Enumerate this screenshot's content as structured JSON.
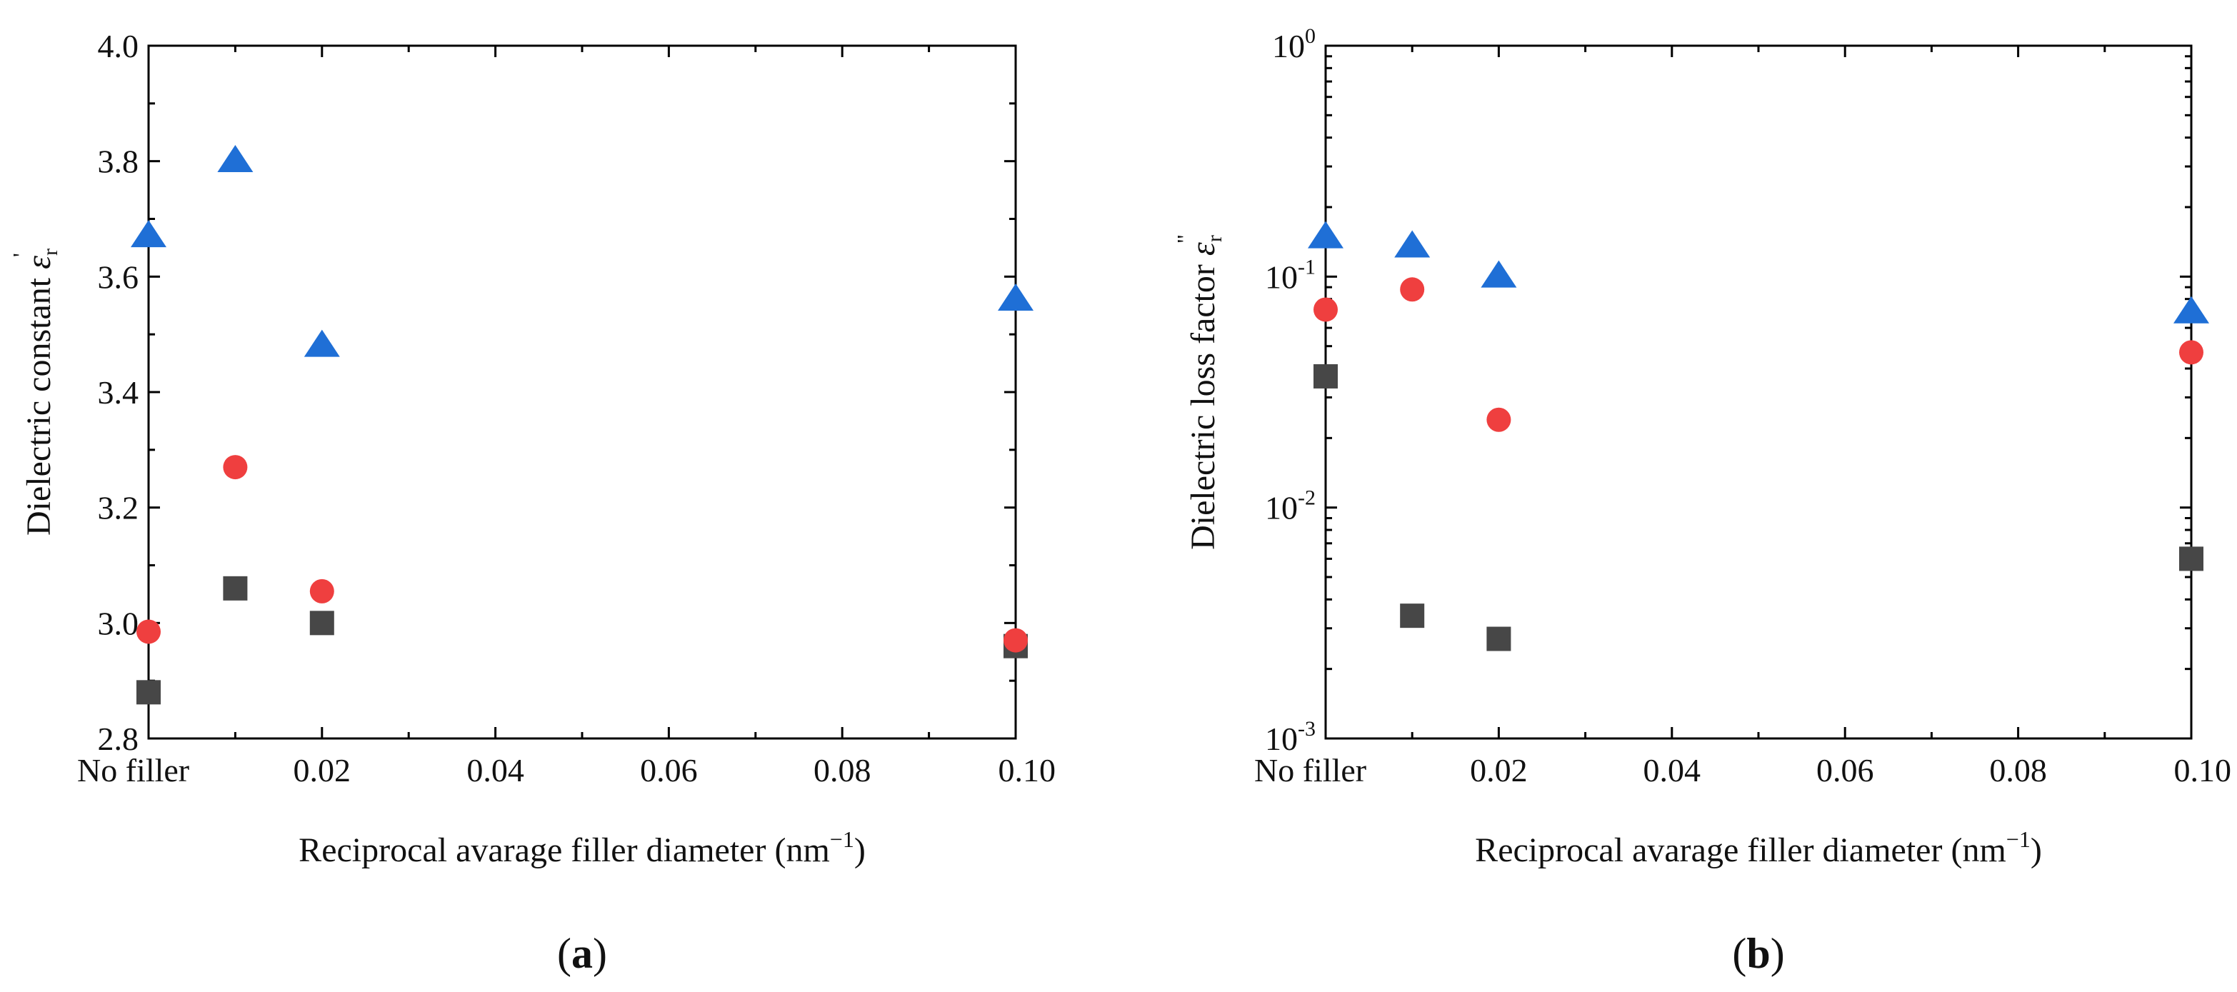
{
  "chart_data": [
    {
      "panel_label": "(a)",
      "panel_letter": "a",
      "type": "scatter",
      "xlabel": "Reciprocal avarage filler diameter (nm",
      "xlabel_sup": "−1",
      "xlabel_close": ")",
      "ylabel_main": "Dielectric constant ",
      "ylabel_symbol": "ε",
      "ylabel_sub": "r",
      "ylabel_sup": "'",
      "xlim": [
        0,
        0.1
      ],
      "ylim": [
        2.8,
        4.0
      ],
      "x_ticks": [
        {
          "value": 0,
          "label": "No filler"
        },
        {
          "value": 0.02,
          "label": "0.02"
        },
        {
          "value": 0.04,
          "label": "0.04"
        },
        {
          "value": 0.06,
          "label": "0.06"
        },
        {
          "value": 0.08,
          "label": "0.08"
        },
        {
          "value": 0.1,
          "label": "0.10"
        }
      ],
      "y_ticks": [
        {
          "value": 2.8,
          "label": "2.8"
        },
        {
          "value": 3.0,
          "label": "3.0"
        },
        {
          "value": 3.2,
          "label": "3.2"
        },
        {
          "value": 3.4,
          "label": "3.4"
        },
        {
          "value": 3.6,
          "label": "3.6"
        },
        {
          "value": 3.8,
          "label": "3.8"
        },
        {
          "value": 4.0,
          "label": "4.0"
        }
      ],
      "series": [
        {
          "name": "square",
          "marker": "square",
          "color": "#474747",
          "x": [
            0,
            0.01,
            0.02,
            0.1
          ],
          "y": [
            2.88,
            3.06,
            3.0,
            2.96
          ]
        },
        {
          "name": "circle",
          "marker": "circle",
          "color": "#ef3f3f",
          "x": [
            0,
            0.01,
            0.02,
            0.1
          ],
          "y": [
            2.985,
            3.27,
            3.055,
            2.97
          ]
        },
        {
          "name": "triangle",
          "marker": "triangle",
          "color": "#1f6fd6",
          "x": [
            0,
            0.01,
            0.02,
            0.1
          ],
          "y": [
            3.67,
            3.8,
            3.48,
            3.56
          ]
        }
      ]
    },
    {
      "panel_label": "(b)",
      "panel_letter": "b",
      "type": "scatter",
      "y_scale": "log",
      "xlabel": "Reciprocal avarage filler diameter (nm",
      "xlabel_sup": "−1",
      "xlabel_close": ")",
      "ylabel_main": "Dielectric loss factor ",
      "ylabel_symbol": "ε",
      "ylabel_sub": "r",
      "ylabel_sup": "\"",
      "xlim": [
        0,
        0.1
      ],
      "ylim": [
        0.001,
        1
      ],
      "x_ticks": [
        {
          "value": 0,
          "label": "No filler"
        },
        {
          "value": 0.02,
          "label": "0.02"
        },
        {
          "value": 0.04,
          "label": "0.04"
        },
        {
          "value": 0.06,
          "label": "0.06"
        },
        {
          "value": 0.08,
          "label": "0.08"
        },
        {
          "value": 0.1,
          "label": "0.10"
        }
      ],
      "y_ticks": [
        {
          "value": 0.001,
          "base": "10",
          "exp": "-3"
        },
        {
          "value": 0.01,
          "base": "10",
          "exp": "-2"
        },
        {
          "value": 0.1,
          "base": "10",
          "exp": "-1"
        },
        {
          "value": 1,
          "base": "10",
          "exp": "0"
        }
      ],
      "series": [
        {
          "name": "square",
          "marker": "square",
          "color": "#474747",
          "x": [
            0,
            0.01,
            0.02,
            0.1
          ],
          "y": [
            0.037,
            0.0034,
            0.0027,
            0.006
          ]
        },
        {
          "name": "circle",
          "marker": "circle",
          "color": "#ef3f3f",
          "x": [
            0,
            0.01,
            0.02,
            0.1
          ],
          "y": [
            0.072,
            0.088,
            0.024,
            0.047
          ]
        },
        {
          "name": "triangle",
          "marker": "triangle",
          "color": "#1f6fd6",
          "x": [
            0,
            0.01,
            0.02,
            0.1
          ],
          "y": [
            0.148,
            0.135,
            0.1,
            0.07
          ]
        }
      ]
    }
  ]
}
